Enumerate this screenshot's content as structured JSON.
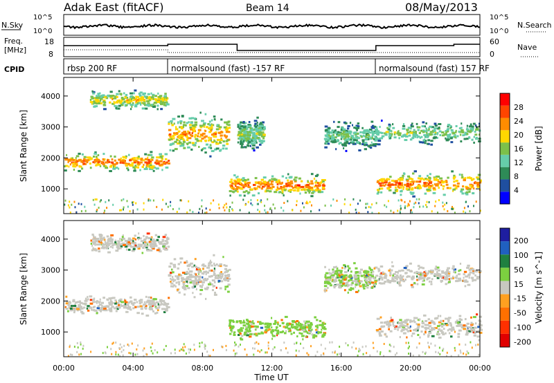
{
  "header": {
    "station": "Adak East (fitACF)",
    "beam": "Beam 14",
    "date": "08/May/2013"
  },
  "noise_panel": {
    "left_label": "N.Sky",
    "right_label": "N.Search",
    "left_ticks": [
      "10^5",
      "10^0"
    ],
    "right_ticks": [
      "10^5",
      "10^0"
    ]
  },
  "freq_panel": {
    "left_label_1": "Freq.",
    "left_label_2": "[MHz]",
    "left_ticks": [
      "18",
      "8"
    ],
    "right_label": "Nave",
    "right_ticks": [
      "60",
      "0"
    ]
  },
  "cpid_panel": {
    "label": "CPID",
    "segments": [
      {
        "label": "rbsp 200 RF",
        "start": "00:00",
        "end": "06:00"
      },
      {
        "label": "normalsound (fast) -157 RF",
        "start": "06:00",
        "end": "18:00"
      },
      {
        "label": "normalsound (fast) 157 RF",
        "start": "18:00",
        "end": "24:00"
      }
    ]
  },
  "colors": {
    "power_scale": [
      "#0000ff",
      "#1f4fa0",
      "#2e8b57",
      "#66cdaa",
      "#7cc04a",
      "#ffd700",
      "#ff8c00",
      "#ff4500",
      "#ff0000"
    ],
    "velocity_scale": [
      "#1e1ea0",
      "#2060c0",
      "#208040",
      "#7cd040",
      "#c8c8c0",
      "#ffa020",
      "#ff7000",
      "#ff3000",
      "#e00000"
    ]
  },
  "chart_data": [
    {
      "type": "heatmap",
      "title": "Power",
      "xlabel": "Time UT",
      "ylabel": "Slant Range [km]",
      "x_tick_labels": [
        "00:00",
        "04:00",
        "08:00",
        "12:00",
        "16:00",
        "20:00",
        "00:00"
      ],
      "x_tick_hours": [
        0,
        4,
        8,
        12,
        16,
        20,
        24
      ],
      "xlim_hours": [
        0,
        24
      ],
      "y_ticks": [
        "1000",
        "2000",
        "3000",
        "4000"
      ],
      "y_tick_values": [
        1000,
        2000,
        3000,
        4000
      ],
      "ylim_km": [
        200,
        4600
      ],
      "colorbar_label": "Power [dB]",
      "colorbar_ticks": [
        "28",
        "24",
        "20",
        "16",
        "12",
        "8",
        "4"
      ],
      "colorbar_values": [
        28,
        24,
        20,
        16,
        12,
        8,
        4
      ],
      "colorbar_range": [
        0,
        32
      ],
      "echo_regions": [
        {
          "t0": 0.0,
          "t1": 6.0,
          "r0": 1500,
          "r1": 2300,
          "peak_db": 26
        },
        {
          "t0": 1.5,
          "t1": 6.0,
          "r0": 3500,
          "r1": 4300,
          "peak_db": 20
        },
        {
          "t0": 6.0,
          "t1": 9.5,
          "r0": 2000,
          "r1": 3600,
          "peak_db": 24
        },
        {
          "t0": 9.5,
          "t1": 15.0,
          "r0": 700,
          "r1": 1600,
          "peak_db": 26
        },
        {
          "t0": 10.0,
          "t1": 11.5,
          "r0": 2200,
          "r1": 3400,
          "peak_db": 16
        },
        {
          "t0": 15.0,
          "t1": 18.0,
          "r0": 2200,
          "r1": 3300,
          "peak_db": 14
        },
        {
          "t0": 18.0,
          "t1": 24.0,
          "r0": 700,
          "r1": 1700,
          "peak_db": 26
        },
        {
          "t0": 18.0,
          "t1": 24.0,
          "r0": 2400,
          "r1": 3300,
          "peak_db": 16
        }
      ]
    },
    {
      "type": "heatmap",
      "title": "Velocity",
      "xlabel": "Time UT",
      "ylabel": "Slant Range [km]",
      "x_tick_labels": [
        "00:00",
        "04:00",
        "08:00",
        "12:00",
        "16:00",
        "20:00",
        "00:00"
      ],
      "x_tick_hours": [
        0,
        4,
        8,
        12,
        16,
        20,
        24
      ],
      "xlim_hours": [
        0,
        24
      ],
      "y_ticks": [
        "1000",
        "2000",
        "3000",
        "4000"
      ],
      "y_tick_values": [
        1000,
        2000,
        3000,
        4000
      ],
      "ylim_km": [
        200,
        4600
      ],
      "colorbar_label": "Velocity [m s^-1]",
      "colorbar_ticks": [
        "200",
        "100",
        "50",
        "15",
        "-15",
        "-50",
        "-100",
        "-200"
      ],
      "colorbar_values": [
        200,
        100,
        50,
        15,
        -15,
        -50,
        -100,
        -200
      ],
      "colorbar_range": [
        -250,
        250
      ],
      "echo_regions": [
        {
          "t0": 0.0,
          "t1": 6.0,
          "r0": 1500,
          "r1": 2300,
          "vel": 0
        },
        {
          "t0": 1.5,
          "t1": 6.0,
          "r0": 3500,
          "r1": 4300,
          "vel": 0
        },
        {
          "t0": 6.0,
          "t1": 9.5,
          "r0": 2000,
          "r1": 3600,
          "vel": 0
        },
        {
          "t0": 9.5,
          "t1": 15.0,
          "r0": 700,
          "r1": 1600,
          "vel": 60
        },
        {
          "t0": 15.0,
          "t1": 18.0,
          "r0": 2200,
          "r1": 3300,
          "vel": 30
        },
        {
          "t0": 18.0,
          "t1": 24.0,
          "r0": 700,
          "r1": 1700,
          "vel": 0
        },
        {
          "t0": 18.0,
          "t1": 24.0,
          "r0": 2400,
          "r1": 3300,
          "vel": 0
        }
      ]
    }
  ]
}
